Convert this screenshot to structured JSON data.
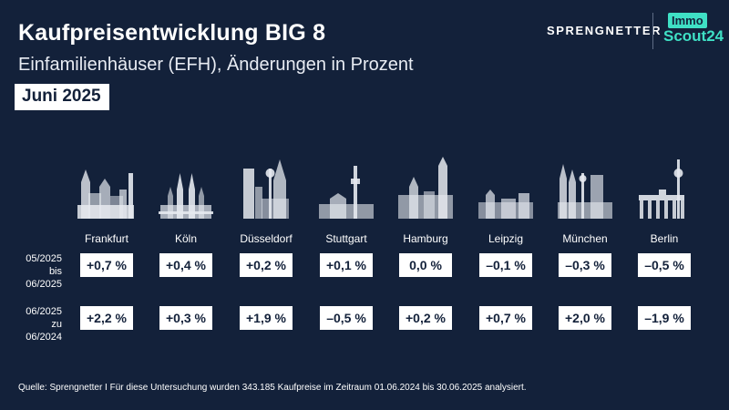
{
  "header": {
    "title": "Kaufpreisentwicklung BIG 8",
    "subtitle": "Einfamilienhäuser (EFH), Änderungen in Prozent",
    "date_badge": "Juni 2025"
  },
  "logos": {
    "sprengnetter": "SPRENGNETTER",
    "immo": "Immo",
    "scout": "Scout24"
  },
  "colors": {
    "background": "#13213a",
    "skyline": "#e6e9ef",
    "accent": "#3fe0c5"
  },
  "chart_data": {
    "type": "table",
    "categories": [
      "Frankfurt",
      "Köln",
      "Düsseldorf",
      "Stuttgart",
      "Hamburg",
      "Leipzig",
      "München",
      "Berlin"
    ],
    "rows": [
      {
        "label_line1": "05/2025",
        "label_line2": "bis 06/2025",
        "values": [
          0.7,
          0.4,
          0.2,
          0.1,
          0.0,
          -0.1,
          -0.3,
          -0.5
        ],
        "display": [
          "+0,7 %",
          "+0,4 %",
          "+0,2 %",
          "+0,1 %",
          "0,0 %",
          "–0,1 %",
          "–0,3 %",
          "–0,5 %"
        ]
      },
      {
        "label_line1": "06/2025",
        "label_line2": "zu 06/2024",
        "values": [
          2.2,
          0.3,
          1.9,
          -0.5,
          0.2,
          0.7,
          2.0,
          -1.9
        ],
        "display": [
          "+2,2 %",
          "+0,3 %",
          "+1,9 %",
          "–0,5 %",
          "+0,2 %",
          "+0,7 %",
          "+2,0 %",
          "–1,9 %"
        ]
      }
    ]
  },
  "footer": {
    "source": "Quelle: Sprengnetter I Für diese Untersuchung wurden 343.185 Kaufpreise im Zeitraum 01.06.2024 bis 30.06.2025 analysiert."
  }
}
